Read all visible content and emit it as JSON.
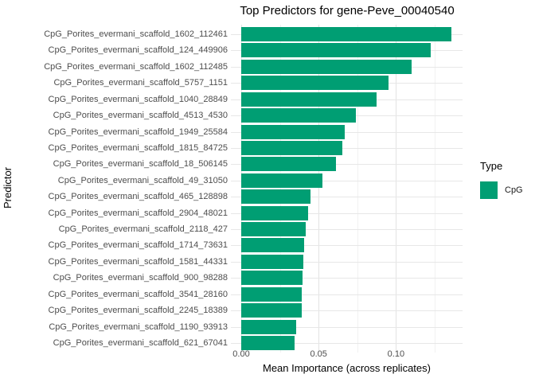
{
  "chart_data": {
    "type": "bar",
    "orientation": "horizontal",
    "title": "Top Predictors for gene-Peve_00040540",
    "xlabel": "Mean Importance (across replicates)",
    "ylabel": "Predictor",
    "categories": [
      "CpG_Porites_evermani_scaffold_1602_112461",
      "CpG_Porites_evermani_scaffold_124_449906",
      "CpG_Porites_evermani_scaffold_1602_112485",
      "CpG_Porites_evermani_scaffold_5757_1151",
      "CpG_Porites_evermani_scaffold_1040_28849",
      "CpG_Porites_evermani_scaffold_4513_4530",
      "CpG_Porites_evermani_scaffold_1949_25584",
      "CpG_Porites_evermani_scaffold_1815_84725",
      "CpG_Porites_evermani_scaffold_18_506145",
      "CpG_Porites_evermani_scaffold_49_31050",
      "CpG_Porites_evermani_scaffold_465_128898",
      "CpG_Porites_evermani_scaffold_2904_48021",
      "CpG_Porites_evermani_scaffold_2118_427",
      "CpG_Porites_evermani_scaffold_1714_73631",
      "CpG_Porites_evermani_scaffold_1581_44331",
      "CpG_Porites_evermani_scaffold_900_98288",
      "CpG_Porites_evermani_scaffold_3541_28160",
      "CpG_Porites_evermani_scaffold_2245_18389",
      "CpG_Porites_evermani_scaffold_1190_93913",
      "CpG_Porites_evermani_scaffold_621_67041"
    ],
    "values": [
      0.136,
      0.1225,
      0.11,
      0.095,
      0.0875,
      0.074,
      0.067,
      0.0655,
      0.061,
      0.0525,
      0.045,
      0.0432,
      0.0418,
      0.0406,
      0.0401,
      0.0396,
      0.0391,
      0.0391,
      0.0353,
      0.0345
    ],
    "series_name": "CpG",
    "bar_color": "#009E73",
    "xlim": [
      0,
      0.143
    ],
    "x_ticks": {
      "values": [
        0,
        0.05,
        0.1
      ],
      "labels": [
        "0.00",
        "0.05",
        "0.10"
      ]
    },
    "x_minor_ticks": [
      0.025,
      0.075,
      0.125
    ],
    "grid": true,
    "legend": {
      "title": "Type",
      "position": "right",
      "items": [
        {
          "label": "CpG",
          "color": "#009E73"
        }
      ]
    }
  }
}
